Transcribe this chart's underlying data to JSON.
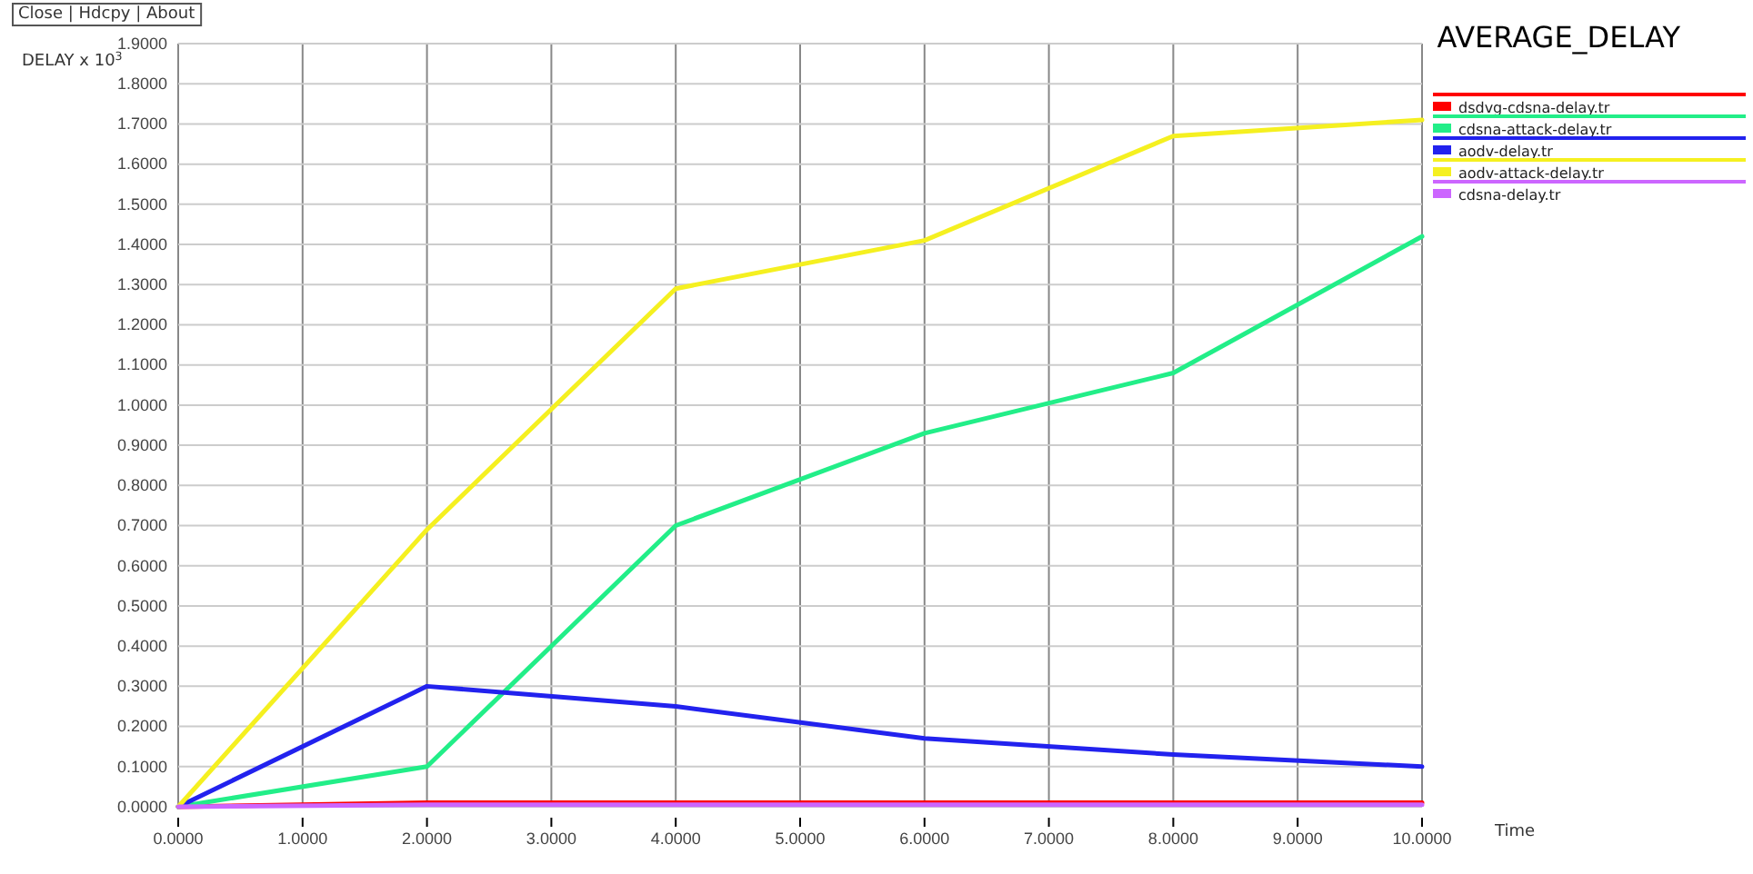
{
  "chart_data": {
    "type": "line",
    "title": "AVERAGE_DELAY",
    "ylabel": "DELAY x 10$^{3}$",
    "xlabel": "Time",
    "annotations": [
      "Close | Hdcpy | About"
    ],
    "x": [
      0,
      2,
      4,
      6,
      8,
      10
    ],
    "series": [
      {
        "name": "dsdvg-cdsna-delay.tr",
        "color": "#ff0000",
        "values": [
          0,
          0.01,
          0.01,
          0.01,
          0.01,
          0.01
        ]
      },
      {
        "name": "cdsna-attack-delay.tr",
        "color": "#22ee88",
        "values": [
          0,
          0.1,
          0.7,
          0.93,
          1.08,
          1.42
        ]
      },
      {
        "name": "aodv-delay.tr",
        "color": "#2222ee",
        "values": [
          0,
          0.3,
          0.25,
          0.17,
          0.13,
          0.1
        ]
      },
      {
        "name": "aodv-attack-delay.tr",
        "color": "#f5f020",
        "values": [
          0,
          0.69,
          1.29,
          1.41,
          1.67,
          1.71
        ]
      },
      {
        "name": "cdsna-delay.tr",
        "color": "#cc66ff",
        "values": [
          0,
          0.005,
          0.005,
          0.005,
          0.005,
          0.005
        ]
      }
    ],
    "xlim": [
      0,
      10
    ],
    "ylim": [
      0,
      1.9
    ],
    "xticks": [
      {
        "value": 0,
        "label": "0.0000"
      },
      {
        "value": 1,
        "label": "1.0000"
      },
      {
        "value": 2,
        "label": "2.0000"
      },
      {
        "value": 3,
        "label": "3.0000"
      },
      {
        "value": 4,
        "label": "4.0000"
      },
      {
        "value": 5,
        "label": "5.0000"
      },
      {
        "value": 6,
        "label": "6.0000"
      },
      {
        "value": 7,
        "label": "7.0000"
      },
      {
        "value": 8,
        "label": "8.0000"
      },
      {
        "value": 9,
        "label": "9.0000"
      },
      {
        "value": 10,
        "label": "10.0000"
      }
    ],
    "yticks": [
      {
        "value": 0,
        "label": "0.0000"
      },
      {
        "value": 0.1,
        "label": "0.1000"
      },
      {
        "value": 0.2,
        "label": "0.2000"
      },
      {
        "value": 0.3,
        "label": "0.3000"
      },
      {
        "value": 0.4,
        "label": "0.4000"
      },
      {
        "value": 0.5,
        "label": "0.5000"
      },
      {
        "value": 0.6,
        "label": "0.6000"
      },
      {
        "value": 0.7,
        "label": "0.7000"
      },
      {
        "value": 0.8,
        "label": "0.8000"
      },
      {
        "value": 0.9,
        "label": "0.9000"
      },
      {
        "value": 1,
        "label": "1.0000"
      },
      {
        "value": 1.1,
        "label": "1.1000"
      },
      {
        "value": 1.2,
        "label": "1.2000"
      },
      {
        "value": 1.3,
        "label": "1.3000"
      },
      {
        "value": 1.4,
        "label": "1.4000"
      },
      {
        "value": 1.5,
        "label": "1.5000"
      },
      {
        "value": 1.6,
        "label": "1.6000"
      },
      {
        "value": 1.7,
        "label": "1.7000"
      },
      {
        "value": 1.8,
        "label": "1.8000"
      },
      {
        "value": 1.9,
        "label": "1.9000"
      }
    ],
    "grid": true,
    "legend": "top right",
    "line_style": "solid",
    "marker": "none"
  }
}
